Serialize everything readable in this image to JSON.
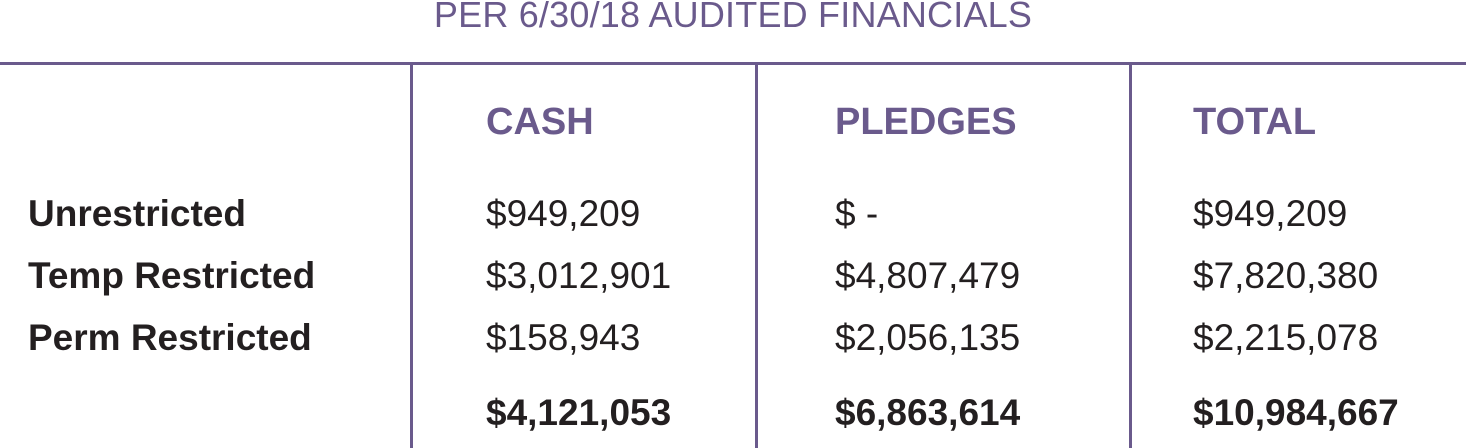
{
  "title": "PER 6/30/18 AUDITED FINANCIALS",
  "columns": [
    "CASH",
    "PLEDGES",
    "TOTAL"
  ],
  "rows": [
    {
      "label": "Unrestricted",
      "cash": "$949,209",
      "pledges": "$ -",
      "total": "$949,209"
    },
    {
      "label": "Temp Restricted",
      "cash": "$3,012,901",
      "pledges": "$4,807,479",
      "total": "$7,820,380"
    },
    {
      "label": "Perm Restricted",
      "cash": "$158,943",
      "pledges": "$2,056,135",
      "total": "$2,215,078"
    }
  ],
  "totals": {
    "cash": "$4,121,053",
    "pledges": "$6,863,614",
    "total": "$10,984,667"
  },
  "colors": {
    "accent": "#6a5a8c",
    "text": "#231f20"
  }
}
